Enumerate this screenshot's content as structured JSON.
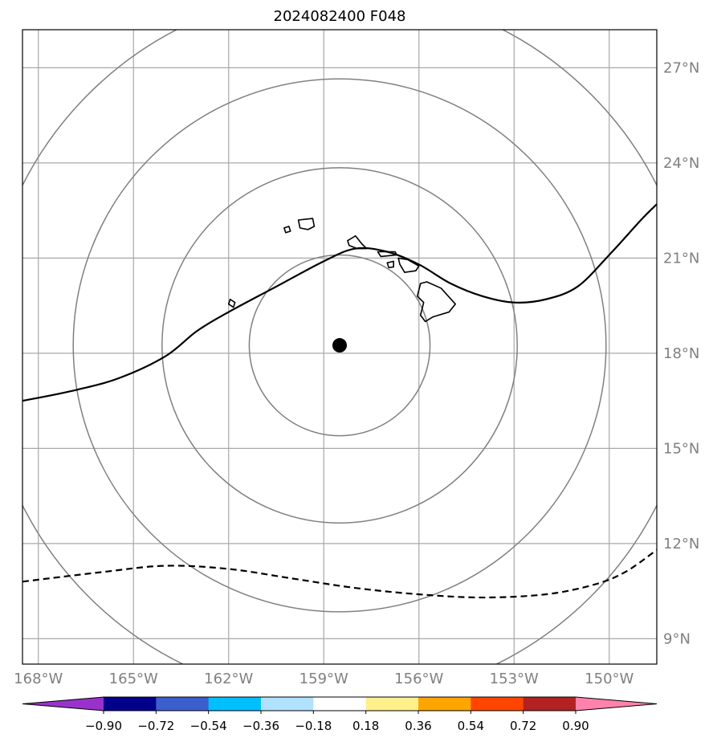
{
  "title": "2024082400 F048",
  "lon_ticks": [
    {
      "value": -168,
      "label": "168°W"
    },
    {
      "value": -165,
      "label": "165°W"
    },
    {
      "value": -162,
      "label": "162°W"
    },
    {
      "value": -159,
      "label": "159°W"
    },
    {
      "value": -156,
      "label": "156°W"
    },
    {
      "value": -153,
      "label": "153°W"
    },
    {
      "value": -150,
      "label": "150°W"
    }
  ],
  "lat_ticks": [
    {
      "value": 9,
      "label": "9°N"
    },
    {
      "value": 12,
      "label": "12°N"
    },
    {
      "value": 15,
      "label": "15°N"
    },
    {
      "value": 18,
      "label": "18°N"
    },
    {
      "value": 21,
      "label": "21°N"
    },
    {
      "value": 24,
      "label": "24°N"
    },
    {
      "value": 27,
      "label": "27°N"
    }
  ],
  "extent": {
    "lon": [
      -168.5,
      -148.5
    ],
    "lat": [
      8.2,
      28.2
    ]
  },
  "center_marker": {
    "lon": -158.5,
    "lat": 18.25
  },
  "range_rings_deg": [
    2.85,
    5.6,
    8.4,
    11.2
  ],
  "colorbar": {
    "labels": [
      "−0.90",
      "−0.72",
      "−0.54",
      "−0.36",
      "−0.18",
      "0.18",
      "0.36",
      "0.54",
      "0.72",
      "0.90"
    ],
    "colors": [
      "#9932cc",
      "#00008b",
      "#3a5fcd",
      "#00bfff",
      "#b0e2ff",
      "#ffffff",
      "#fff08c",
      "#ffa500",
      "#ff4500",
      "#b22222",
      "#ff82ab"
    ]
  },
  "solid_contour": [
    [
      -168.5,
      16.5
    ],
    [
      -167,
      16.8
    ],
    [
      -165.5,
      17.2
    ],
    [
      -164,
      17.9
    ],
    [
      -163,
      18.7
    ],
    [
      -162,
      19.3
    ],
    [
      -160.5,
      20.1
    ],
    [
      -159,
      20.9
    ],
    [
      -158,
      21.3
    ],
    [
      -157,
      21.2
    ],
    [
      -156,
      20.8
    ],
    [
      -155,
      20.2
    ],
    [
      -154,
      19.8
    ],
    [
      -153,
      19.6
    ],
    [
      -152,
      19.7
    ],
    [
      -151,
      20.1
    ],
    [
      -150,
      21.1
    ],
    [
      -149,
      22.2
    ],
    [
      -148.5,
      22.7
    ]
  ],
  "dashed_contour": [
    [
      -168.5,
      10.8
    ],
    [
      -166,
      11.1
    ],
    [
      -164,
      11.3
    ],
    [
      -162,
      11.2
    ],
    [
      -160,
      10.9
    ],
    [
      -158,
      10.6
    ],
    [
      -156,
      10.4
    ],
    [
      -154,
      10.3
    ],
    [
      -152,
      10.4
    ],
    [
      -150.5,
      10.7
    ],
    [
      -149.5,
      11.1
    ],
    [
      -148.5,
      11.8
    ]
  ],
  "islands": [
    {
      "name": "niihau",
      "points": [
        [
          -160.25,
          21.95
        ],
        [
          -160.1,
          22.0
        ],
        [
          -160.05,
          21.85
        ],
        [
          -160.2,
          21.8
        ]
      ]
    },
    {
      "name": "kauai",
      "points": [
        [
          -159.8,
          22.2
        ],
        [
          -159.35,
          22.25
        ],
        [
          -159.3,
          22.0
        ],
        [
          -159.5,
          21.9
        ],
        [
          -159.75,
          21.95
        ]
      ]
    },
    {
      "name": "oahu",
      "points": [
        [
          -158.25,
          21.55
        ],
        [
          -158.0,
          21.7
        ],
        [
          -157.8,
          21.45
        ],
        [
          -157.65,
          21.3
        ],
        [
          -157.95,
          21.3
        ],
        [
          -158.2,
          21.4
        ]
      ]
    },
    {
      "name": "molokai",
      "points": [
        [
          -157.3,
          21.2
        ],
        [
          -156.75,
          21.2
        ],
        [
          -156.7,
          21.1
        ],
        [
          -157.2,
          21.05
        ]
      ]
    },
    {
      "name": "lanai",
      "points": [
        [
          -157.0,
          20.85
        ],
        [
          -156.8,
          20.9
        ],
        [
          -156.8,
          20.72
        ],
        [
          -156.95,
          20.7
        ]
      ]
    },
    {
      "name": "maui",
      "points": [
        [
          -156.65,
          21.0
        ],
        [
          -156.35,
          20.95
        ],
        [
          -156.0,
          20.75
        ],
        [
          -156.1,
          20.6
        ],
        [
          -156.45,
          20.55
        ],
        [
          -156.6,
          20.8
        ]
      ]
    },
    {
      "name": "hawaii",
      "points": [
        [
          -155.95,
          20.2
        ],
        [
          -155.75,
          20.25
        ],
        [
          -155.3,
          20.05
        ],
        [
          -154.85,
          19.55
        ],
        [
          -155.05,
          19.3
        ],
        [
          -155.55,
          19.15
        ],
        [
          -155.8,
          19.0
        ],
        [
          -155.95,
          19.2
        ],
        [
          -155.85,
          19.6
        ],
        [
          -156.05,
          19.8
        ]
      ]
    },
    {
      "name": "nihoa",
      "points": [
        [
          -161.95,
          19.7
        ],
        [
          -161.8,
          19.6
        ],
        [
          -161.85,
          19.45
        ],
        [
          -162.0,
          19.55
        ]
      ]
    }
  ]
}
